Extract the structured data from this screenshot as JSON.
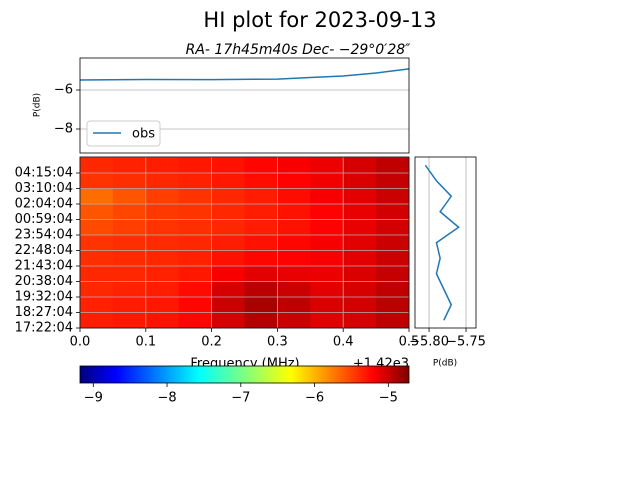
{
  "chart_data": [
    {
      "type": "line",
      "title": "HI plot for 2023-09-13",
      "subtitle": "RA- 17h45m40s Dec- −29°0′28″",
      "y_label": "P(dB)",
      "x": [
        0,
        0.1,
        0.2,
        0.3,
        0.35,
        0.4,
        0.45,
        0.5
      ],
      "series": [
        {
          "name": "obs",
          "color": "#1f77b4",
          "values": [
            -5.49,
            -5.46,
            -5.47,
            -5.44,
            -5.36,
            -5.28,
            -5.13,
            -4.92
          ]
        }
      ],
      "xlim": [
        0,
        0.5
      ],
      "ylim": [
        -9.23,
        -4.36
      ],
      "yticks": [
        {
          "value": -6,
          "label": "−6"
        },
        {
          "value": -8,
          "label": "−8"
        }
      ],
      "grid": true,
      "legend": "lower left"
    },
    {
      "type": "heatmap",
      "x_label": "Frequency (MHz)",
      "x_offset": "+1.42e3",
      "xlim": [
        0,
        0.5
      ],
      "xticks": [
        {
          "value": 0,
          "label": "0.0"
        },
        {
          "value": 0.1,
          "label": "0.1"
        },
        {
          "value": 0.2,
          "label": "0.2"
        },
        {
          "value": 0.3,
          "label": "0.3"
        },
        {
          "value": 0.4,
          "label": "0.4"
        },
        {
          "value": 0.5,
          "label": "0.5"
        }
      ],
      "bins": [
        0,
        0.05,
        0.1,
        0.15,
        0.2,
        0.25,
        0.3,
        0.35,
        0.4,
        0.45,
        0.5
      ],
      "categories": [
        "17:22:04",
        "18:27:04",
        "19:32:04",
        "20:38:04",
        "21:43:04",
        "22:48:04",
        "23:54:04",
        "00:59:04",
        "02:04:04",
        "03:10:04",
        "04:15:04"
      ],
      "values": [
        [
          -5.4,
          -5.38,
          -5.36,
          -5.3,
          -5.1,
          -4.95,
          -5.05,
          -5.15,
          -5.1,
          -5.0
        ],
        [
          -5.42,
          -5.4,
          -5.38,
          -5.3,
          -5.05,
          -4.9,
          -5.0,
          -5.12,
          -5.08,
          -4.98
        ],
        [
          -5.45,
          -5.42,
          -5.4,
          -5.32,
          -5.1,
          -4.98,
          -5.05,
          -5.15,
          -5.1,
          -5.0
        ],
        [
          -5.45,
          -5.45,
          -5.42,
          -5.38,
          -5.25,
          -5.15,
          -5.18,
          -5.2,
          -5.12,
          -5.02
        ],
        [
          -5.48,
          -5.46,
          -5.45,
          -5.42,
          -5.35,
          -5.3,
          -5.28,
          -5.25,
          -5.15,
          -5.05
        ],
        [
          -5.5,
          -5.48,
          -5.46,
          -5.45,
          -5.4,
          -5.35,
          -5.3,
          -5.25,
          -5.15,
          -5.05
        ],
        [
          -5.6,
          -5.55,
          -5.5,
          -5.48,
          -5.45,
          -5.4,
          -5.35,
          -5.28,
          -5.18,
          -5.08
        ],
        [
          -5.65,
          -5.58,
          -5.52,
          -5.5,
          -5.45,
          -5.4,
          -5.35,
          -5.28,
          -5.18,
          -5.08
        ],
        [
          -5.75,
          -5.65,
          -5.55,
          -5.5,
          -5.45,
          -5.4,
          -5.33,
          -5.25,
          -5.15,
          -5.05
        ],
        [
          -5.5,
          -5.48,
          -5.45,
          -5.42,
          -5.38,
          -5.33,
          -5.28,
          -5.22,
          -5.12,
          -5.02
        ],
        [
          -5.45,
          -5.42,
          -5.4,
          -5.38,
          -5.35,
          -5.3,
          -5.25,
          -5.2,
          -5.1,
          -5.0
        ]
      ],
      "colormap": "jet",
      "clim": [
        -9.18,
        -4.72
      ],
      "cticks": [
        {
          "value": -9,
          "label": "−9"
        },
        {
          "value": -8,
          "label": "−8"
        },
        {
          "value": -7,
          "label": "−7"
        },
        {
          "value": -6,
          "label": "−6"
        },
        {
          "value": -5,
          "label": "−5"
        }
      ],
      "grid": true
    },
    {
      "type": "profile",
      "x_label": "P(dB)",
      "color": "#1f77b4",
      "values": [
        -5.78,
        -5.77,
        -5.78,
        -5.79,
        -5.785,
        -5.79,
        -5.76,
        -5.785,
        -5.77,
        -5.79,
        -5.805
      ],
      "xlim": [
        -5.819,
        -5.7365
      ],
      "xticks": [
        {
          "value": -5.8,
          "label": "−5.80"
        },
        {
          "value": -5.75,
          "label": "−5.75"
        }
      ],
      "grid": true
    }
  ]
}
